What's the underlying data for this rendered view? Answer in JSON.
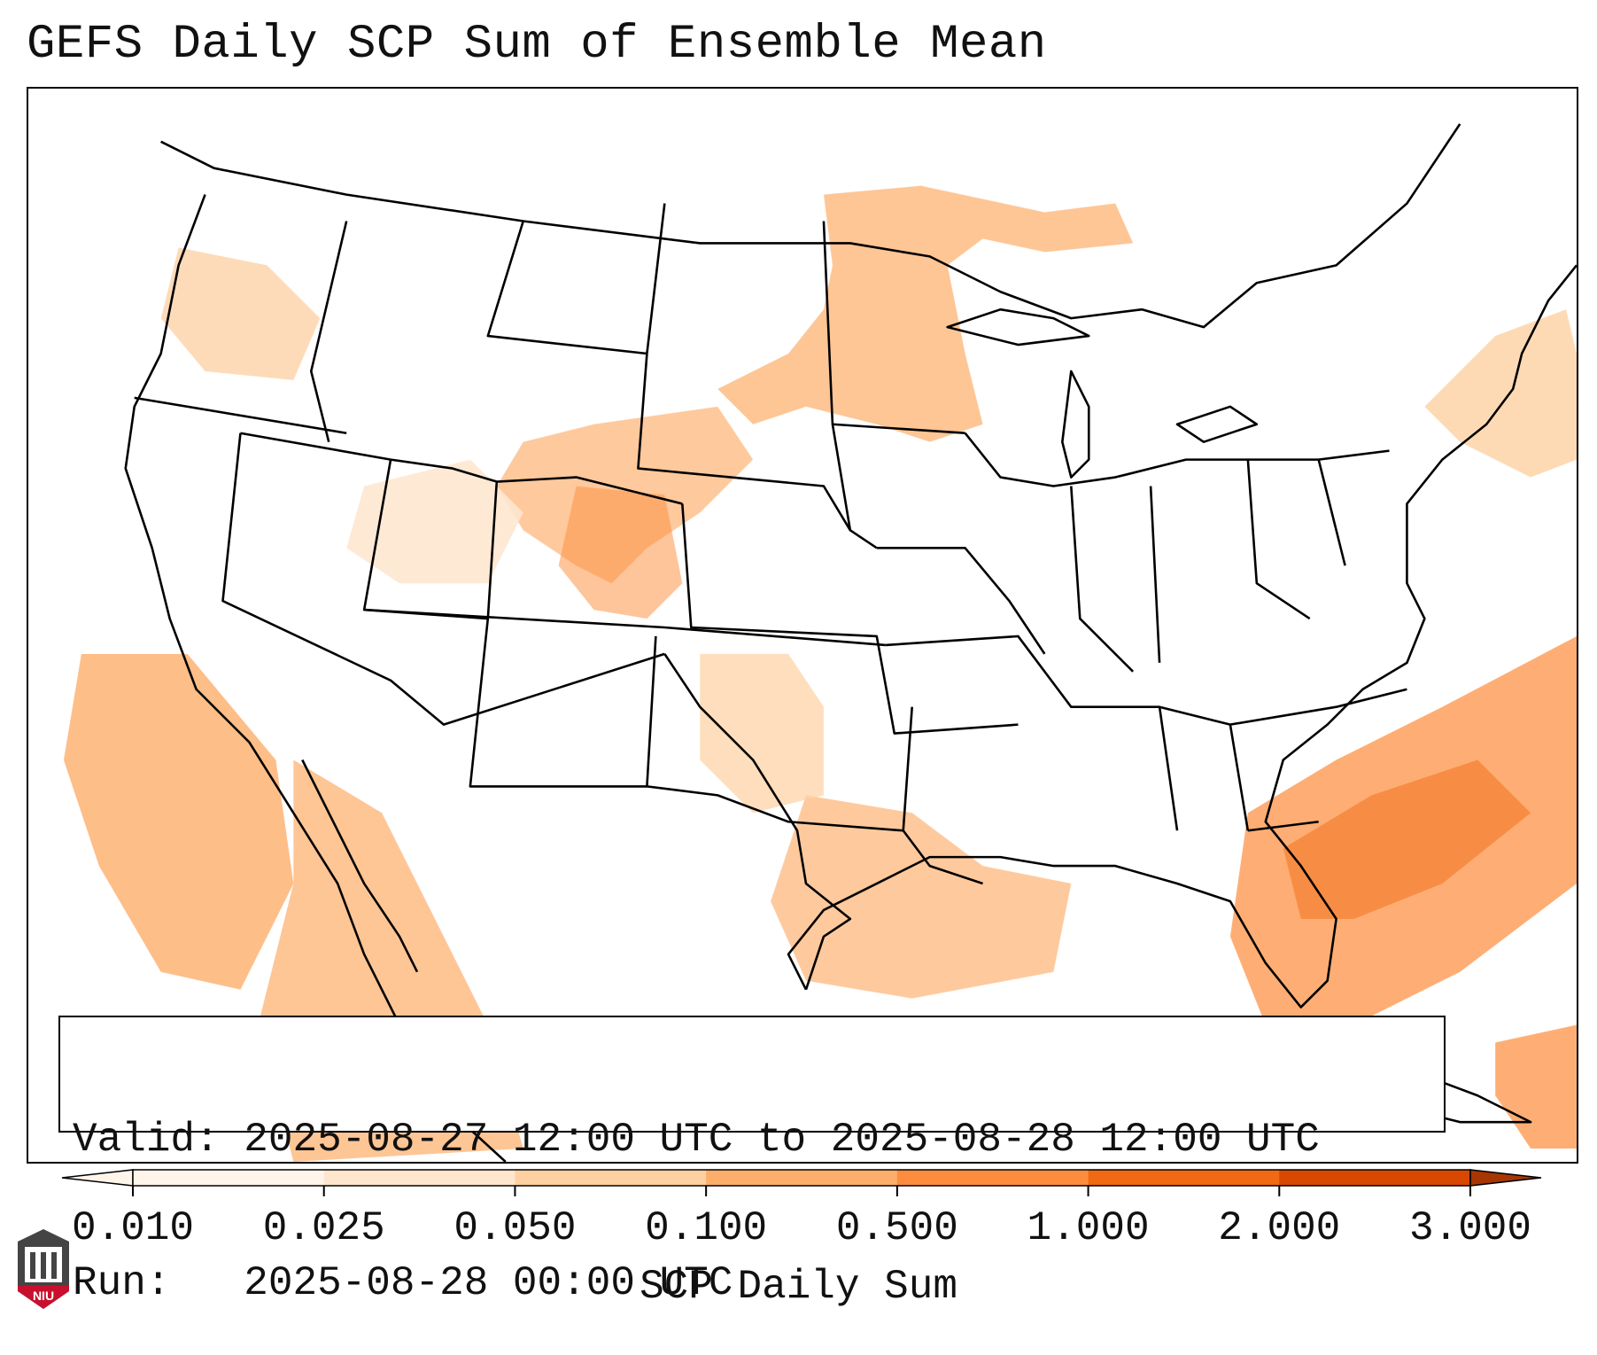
{
  "title": "GEFS Daily SCP Sum of Ensemble Mean",
  "info": {
    "valid_label": "Valid:",
    "valid_value": "2025-08-27 12:00 UTC to 2025-08-28 12:00 UTC",
    "run_label": "Run:",
    "run_value": "2025-08-28 00:00 UTC"
  },
  "colorbar": {
    "label": "SCP Daily Sum",
    "ticks": [
      "0.010",
      "0.025",
      "0.050",
      "0.100",
      "0.500",
      "1.000",
      "2.000",
      "3.000"
    ],
    "colors": [
      "#fff5eb",
      "#fee6ce",
      "#fdd0a2",
      "#fdae6b",
      "#fd8d3c",
      "#f16913",
      "#d94801",
      "#a63603"
    ],
    "extend": "both"
  },
  "logo": {
    "text": "NIU",
    "color": "#c8102e"
  },
  "colors": {
    "frame": "#000000",
    "state_lines": "#000000",
    "background": "#ffffff"
  }
}
